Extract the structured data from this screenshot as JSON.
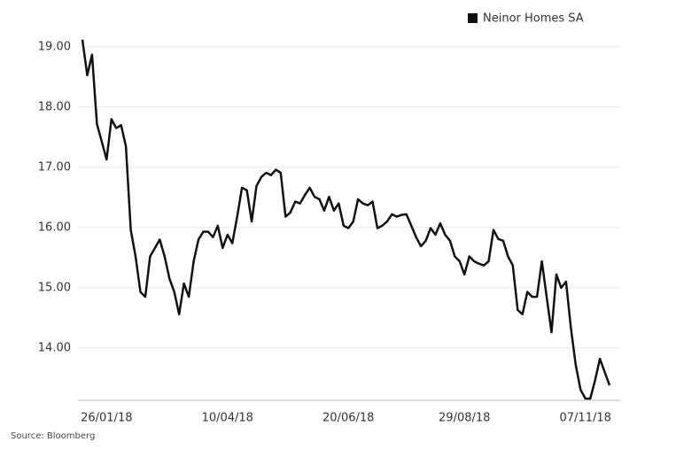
{
  "chart_data": {
    "type": "line",
    "source": "Source: Bloomberg",
    "categories": [
      null,
      null,
      null,
      null,
      null,
      "26/01/18",
      null,
      null,
      null,
      null,
      null,
      null,
      null,
      null,
      null,
      null,
      null,
      null,
      null,
      null,
      null,
      null,
      null,
      null,
      null,
      null,
      null,
      null,
      null,
      null,
      "10/04/18",
      null,
      null,
      null,
      null,
      null,
      null,
      null,
      null,
      null,
      null,
      null,
      null,
      null,
      null,
      null,
      null,
      null,
      null,
      null,
      null,
      null,
      null,
      null,
      null,
      "20/06/18",
      null,
      null,
      null,
      null,
      null,
      null,
      null,
      null,
      null,
      null,
      null,
      null,
      null,
      null,
      null,
      null,
      null,
      null,
      null,
      null,
      null,
      null,
      null,
      "29/08/18",
      null,
      null,
      null,
      null,
      null,
      null,
      null,
      null,
      null,
      null,
      null,
      null,
      null,
      null,
      null,
      null,
      null,
      null,
      null,
      null,
      null,
      null,
      null,
      null,
      "07/11/18",
      null,
      null,
      null,
      null,
      null
    ],
    "series": [
      {
        "name": "Neinor Homes SA",
        "color": "#111111",
        "values": [
          19.12,
          18.53,
          18.87,
          17.72,
          17.43,
          17.13,
          17.8,
          17.65,
          17.7,
          17.35,
          15.96,
          15.52,
          14.93,
          14.85,
          15.52,
          15.66,
          15.8,
          15.52,
          15.15,
          14.93,
          14.56,
          15.07,
          14.85,
          15.44,
          15.8,
          15.93,
          15.93,
          15.84,
          16.03,
          15.66,
          15.88,
          15.74,
          16.18,
          16.66,
          16.62,
          16.1,
          16.69,
          16.84,
          16.91,
          16.87,
          16.96,
          16.91,
          16.18,
          16.25,
          16.43,
          16.4,
          16.54,
          16.66,
          16.51,
          16.47,
          16.28,
          16.51,
          16.28,
          16.4,
          16.03,
          15.99,
          16.1,
          16.47,
          16.4,
          16.37,
          16.43,
          15.99,
          16.03,
          16.1,
          16.22,
          16.18,
          16.21,
          16.22,
          16.03,
          15.84,
          15.69,
          15.78,
          15.99,
          15.88,
          16.07,
          15.88,
          15.78,
          15.52,
          15.44,
          15.22,
          15.52,
          15.44,
          15.4,
          15.37,
          15.44,
          15.96,
          15.81,
          15.78,
          15.52,
          15.37,
          14.63,
          14.56,
          14.93,
          14.85,
          14.85,
          15.44,
          14.85,
          14.26,
          15.22,
          15.0,
          15.1,
          14.34,
          13.72,
          13.31,
          13.16,
          13.16,
          13.46,
          13.82,
          13.6,
          13.38
        ]
      }
    ],
    "ylim": [
      13.13,
      19.19
    ],
    "yticks": [
      {
        "value": 14,
        "label": "14.00"
      },
      {
        "value": 15,
        "label": "15.00"
      },
      {
        "value": 16,
        "label": "16.00"
      },
      {
        "value": 17,
        "label": "17.00"
      },
      {
        "value": 18,
        "label": "18.00"
      },
      {
        "value": 19,
        "label": "19.00"
      }
    ],
    "grid": true,
    "legend": "top-right"
  }
}
